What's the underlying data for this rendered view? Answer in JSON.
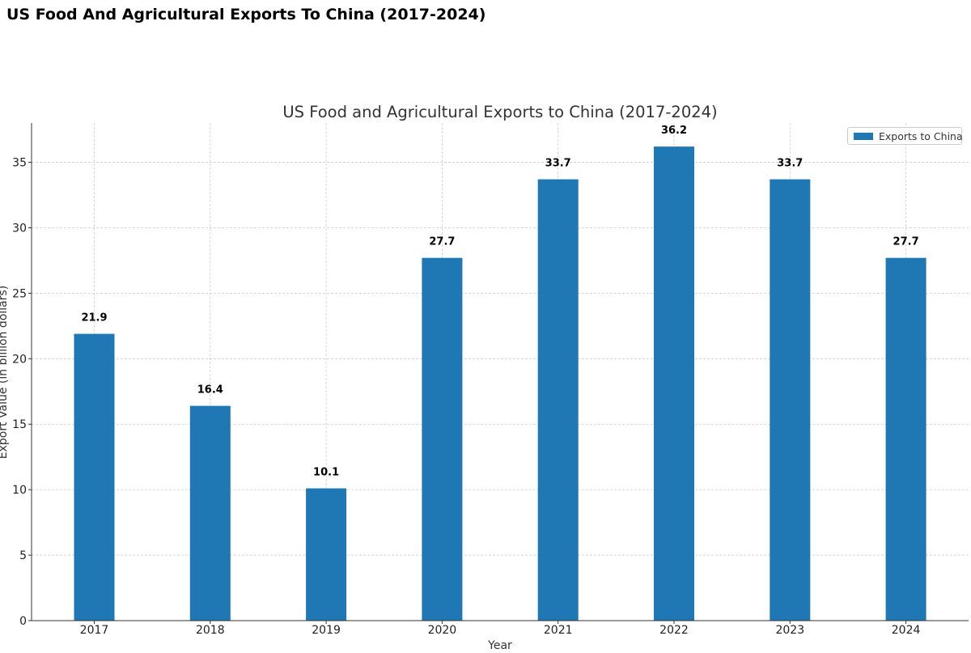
{
  "page_title": "US Food And Agricultural Exports To China (2017-2024)",
  "colors": {
    "bar": "#1f77b4",
    "grid": "#cccccc",
    "axis": "#333333",
    "text": "#000000"
  },
  "chart_data": {
    "type": "bar",
    "title": "US Food and Agricultural Exports to China (2017-2024)",
    "xlabel": "Year",
    "ylabel": "Export Value (in billion dollars)",
    "categories": [
      "2017",
      "2018",
      "2019",
      "2020",
      "2021",
      "2022",
      "2023",
      "2024"
    ],
    "series": [
      {
        "name": "Exports to China",
        "values": [
          21.9,
          16.4,
          10.1,
          27.7,
          33.7,
          36.2,
          33.7,
          27.7
        ]
      }
    ],
    "data_labels": [
      "21.9",
      "16.4",
      "10.1",
      "27.7",
      "33.7",
      "36.2",
      "33.7",
      "27.7"
    ],
    "yticks": [
      0,
      5,
      10,
      15,
      20,
      25,
      30,
      35
    ],
    "ylim": [
      0,
      38
    ],
    "grid": true,
    "legend_position": "top-right"
  }
}
